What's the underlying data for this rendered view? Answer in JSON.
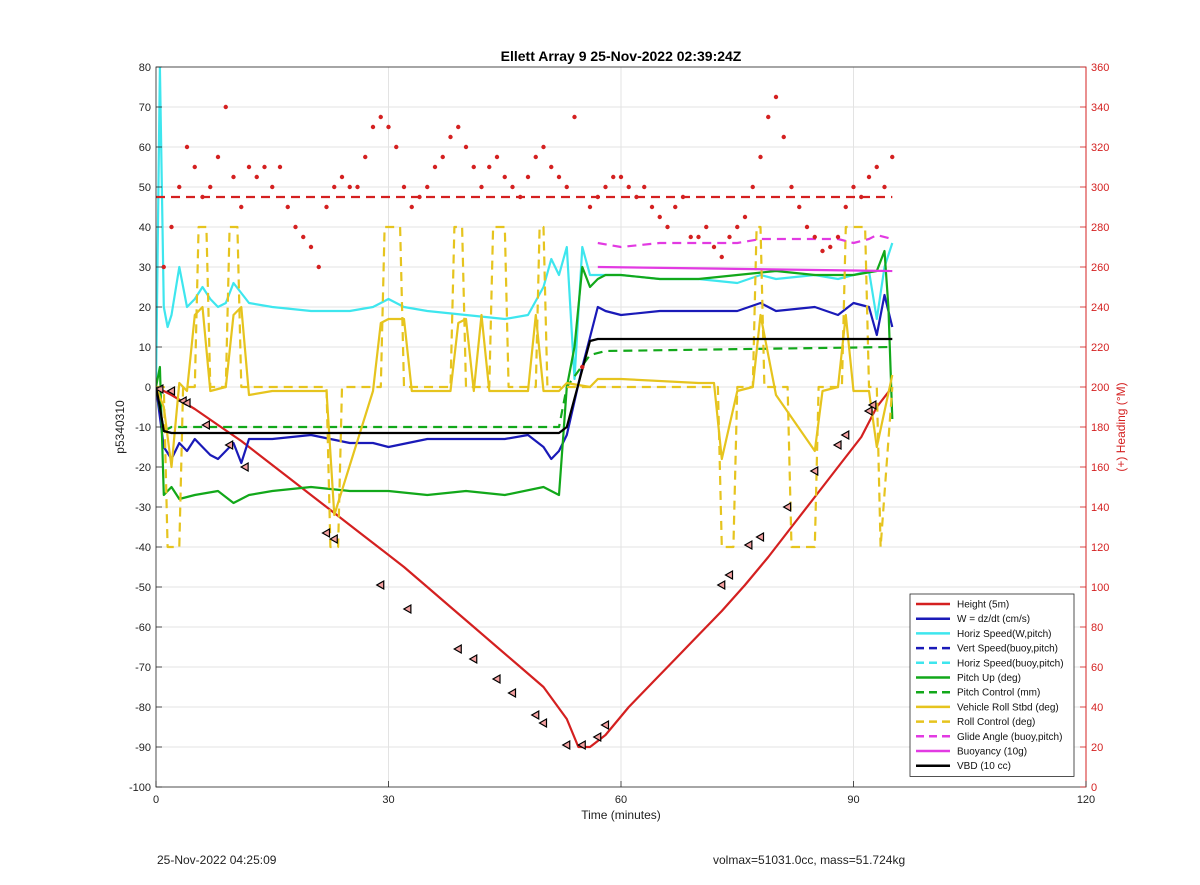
{
  "chart_data": {
    "type": "line",
    "title": "Ellett Array 9 25-Nov-2022 02:39:24Z",
    "xlabel": "Time (minutes)",
    "ylabel": "p5340310",
    "y2label": "(+) Heading (°M)",
    "xlim": [
      0,
      120
    ],
    "ylim": [
      -100,
      80
    ],
    "y2lim": [
      0,
      360
    ],
    "xticks": [
      "0",
      "30",
      "60",
      "90",
      "120"
    ],
    "yticks": [
      "80",
      "70",
      "60",
      "50",
      "40",
      "30",
      "20",
      "10",
      "0",
      "-10",
      "-20",
      "-30",
      "-40",
      "-50",
      "-60",
      "-70",
      "-80",
      "-90",
      "-100"
    ],
    "y2ticks": [
      "360",
      "340",
      "320",
      "300",
      "280",
      "260",
      "240",
      "220",
      "200",
      "180",
      "160",
      "140",
      "120",
      "100",
      "80",
      "60",
      "40",
      "20",
      "0"
    ],
    "grid": true,
    "legend_position": "bottom-right",
    "colors": {
      "red": "#d42020",
      "blue": "#1a1ab8",
      "cyan": "#3ee6ee",
      "green": "#12a81a",
      "yellow": "#e6c41e",
      "magenta": "#e23ae2",
      "black": "#000000",
      "axis_right": "#d42020"
    },
    "series": [
      {
        "name": "Height (5m)",
        "color": "#d42020",
        "style": "solid",
        "x": [
          0,
          2,
          5,
          8,
          11,
          14,
          17,
          20,
          23,
          26,
          29,
          32,
          35,
          38,
          41,
          44,
          47,
          50,
          53,
          54.5,
          56,
          58,
          61,
          64,
          67,
          70,
          73,
          76,
          79,
          82,
          85,
          88,
          91,
          93,
          95
        ],
        "y": [
          0,
          -2,
          -5.5,
          -9.5,
          -13.5,
          -18,
          -22.5,
          -27,
          -31.5,
          -36,
          -40.5,
          -45,
          -50,
          -55,
          -60,
          -65,
          -70,
          -75,
          -83,
          -90,
          -90,
          -87,
          -80,
          -74,
          -68,
          -62,
          -56,
          -49.5,
          -42.5,
          -35,
          -27.5,
          -20,
          -12.5,
          -5,
          0
        ]
      },
      {
        "name": "W = dz/dt (cm/s)",
        "color": "#1a1ab8",
        "style": "solid",
        "x": [
          0,
          1,
          2,
          3,
          4,
          5,
          6,
          7,
          8,
          9,
          10,
          11,
          12,
          15,
          20,
          25,
          28,
          30,
          35,
          40,
          45,
          48,
          50,
          51,
          52,
          53,
          55,
          57,
          58,
          60,
          65,
          70,
          75,
          78,
          80,
          85,
          88,
          90,
          92,
          93,
          94,
          95
        ],
        "y": [
          0,
          -15,
          -18,
          -14,
          -16,
          -13,
          -15,
          -17,
          -18,
          -16,
          -14,
          -19,
          -13,
          -13,
          -12,
          -14,
          -14,
          -15,
          -13,
          -13,
          -13,
          -12,
          -15,
          -18,
          -16,
          -12,
          5,
          20,
          19,
          18,
          19,
          19,
          19,
          21,
          19,
          20,
          18,
          21,
          20,
          13,
          23,
          15
        ]
      },
      {
        "name": "Horiz Speed(W,pitch)",
        "color": "#3ee6ee",
        "style": "solid",
        "x": [
          0,
          0.5,
          1,
          1.5,
          2,
          3,
          4,
          5,
          6,
          7,
          8,
          9,
          10,
          12,
          15,
          20,
          25,
          28,
          30,
          32,
          35,
          40,
          45,
          48,
          50,
          51,
          52,
          53,
          54,
          55,
          56,
          58,
          60,
          65,
          70,
          75,
          78,
          80,
          85,
          88,
          90,
          92,
          93,
          94,
          95
        ],
        "y": [
          0,
          80,
          20,
          15,
          18,
          30,
          20,
          22,
          25,
          22,
          20,
          21,
          26,
          21,
          20,
          19,
          19,
          20,
          22,
          20,
          19,
          18,
          17,
          18,
          25,
          32,
          28,
          35,
          2,
          35,
          28,
          28,
          28,
          27,
          27,
          26,
          28,
          27,
          28,
          27,
          28,
          29,
          17,
          30,
          36
        ]
      },
      {
        "name": "Vert Speed(buoy,pitch)",
        "color": "#1a1ab8",
        "style": "dashed",
        "x": [],
        "y": []
      },
      {
        "name": "Horiz Speed(buoy,pitch)",
        "color": "#3ee6ee",
        "style": "dashed",
        "x": [],
        "y": []
      },
      {
        "name": "Pitch Up (deg)",
        "color": "#12a81a",
        "style": "solid",
        "x": [
          0,
          0.5,
          1,
          2,
          3,
          5,
          8,
          10,
          12,
          15,
          20,
          25,
          30,
          35,
          40,
          45,
          50,
          52,
          53,
          54,
          55,
          56,
          57,
          58,
          60,
          65,
          70,
          75,
          80,
          85,
          90,
          93,
          94,
          94.5,
          95
        ],
        "y": [
          0,
          5,
          -27,
          -25,
          -28,
          -27,
          -26,
          -29,
          -27,
          -26,
          -25,
          -26,
          -26,
          -27,
          -26,
          -27,
          -25,
          -27,
          0,
          10,
          30,
          25,
          27,
          28,
          28,
          27,
          27,
          28,
          29,
          28,
          28,
          29,
          34,
          20,
          -8
        ]
      },
      {
        "name": "Pitch Control (mm)",
        "color": "#12a81a",
        "style": "dashed",
        "x": [
          0,
          1,
          2,
          52,
          53,
          56,
          58,
          95
        ],
        "y": [
          0,
          -11,
          -10,
          -10,
          0,
          8,
          9,
          10
        ]
      },
      {
        "name": "Vehicle Roll Stbd (deg)",
        "color": "#e6c41e",
        "style": "solid",
        "x": [
          0,
          1,
          2,
          3,
          4,
          5,
          6,
          7,
          9,
          10,
          11,
          12,
          15,
          20,
          22,
          23,
          28,
          29,
          30,
          32,
          33,
          35,
          38,
          39,
          40,
          41,
          42,
          43,
          44,
          45,
          48,
          49,
          50,
          52,
          53,
          56,
          57,
          58,
          60,
          70,
          72,
          73,
          75,
          77,
          78,
          80,
          85,
          86,
          88,
          89,
          90,
          92,
          93,
          95
        ],
        "y": [
          0,
          -5,
          -20,
          1,
          -1,
          18,
          20,
          -1,
          0,
          18,
          20,
          -2,
          -1,
          -1,
          -1,
          -32,
          -1,
          16,
          17,
          17,
          -1,
          -1,
          -1,
          16,
          17,
          -1,
          18,
          -1,
          -1,
          -1,
          -1,
          18,
          -1,
          -1,
          1,
          0,
          2,
          2,
          2,
          1,
          1,
          -18,
          -1,
          0,
          18,
          -2,
          -16,
          -1,
          0,
          18,
          -1,
          -1,
          -15,
          3
        ]
      },
      {
        "name": "Roll Control (deg)",
        "color": "#e6c41e",
        "style": "dashed",
        "x": [
          0,
          1,
          1.5,
          3,
          3.5,
          5,
          5.5,
          6.5,
          7,
          9,
          9.5,
          10.5,
          11,
          22,
          22.5,
          23.5,
          24,
          29,
          29.5,
          31.5,
          32,
          38,
          38.5,
          39.5,
          40,
          43,
          43.5,
          45,
          45.5,
          49,
          49.5,
          50,
          50.5,
          56,
          56.5,
          72.5,
          73,
          74.5,
          75,
          77,
          77.5,
          78,
          78.5,
          81.5,
          82,
          85,
          85.5,
          88.5,
          89,
          91.5,
          92,
          93,
          93.5,
          95
        ],
        "y": [
          0,
          0,
          -40,
          -40,
          0,
          0,
          40,
          40,
          0,
          0,
          40,
          40,
          0,
          0,
          -40,
          -40,
          0,
          0,
          40,
          40,
          0,
          0,
          40,
          40,
          0,
          0,
          40,
          40,
          0,
          0,
          40,
          40,
          0,
          0,
          0,
          0,
          -40,
          -40,
          0,
          0,
          40,
          40,
          0,
          0,
          -40,
          -40,
          0,
          0,
          40,
          40,
          0,
          0,
          -40,
          0
        ]
      },
      {
        "name": "Glide Angle (buoy,pitch)",
        "color": "#e23ae2",
        "style": "dashed",
        "x": [
          57,
          60,
          65,
          70,
          75,
          78,
          80,
          85,
          88,
          90,
          92,
          93,
          95
        ],
        "y": [
          36,
          35,
          36,
          36,
          36,
          37,
          37,
          37,
          37,
          36,
          37,
          38,
          37
        ]
      },
      {
        "name": "Buoyancy (10g)",
        "color": "#e23ae2",
        "style": "solid",
        "x": [
          57,
          95
        ],
        "y": [
          30,
          29
        ]
      },
      {
        "name": "VBD (10 cc)",
        "color": "#000000",
        "style": "solid",
        "x": [
          0,
          0.5,
          1,
          2,
          52,
          53,
          56,
          57,
          58,
          95
        ],
        "y": [
          0,
          -5,
          -11,
          -11.5,
          -11.5,
          -10,
          11.5,
          12,
          12,
          12
        ]
      },
      {
        "name": "Heading",
        "axis": "right",
        "color": "#d42020",
        "style": "dots",
        "x": [
          1,
          2,
          3,
          4,
          5,
          6,
          7,
          8,
          9,
          10,
          11,
          12,
          13,
          14,
          15,
          16,
          17,
          18,
          19,
          20,
          21,
          22,
          23,
          24,
          25,
          26,
          27,
          28,
          29,
          30,
          31,
          32,
          33,
          34,
          35,
          36,
          37,
          38,
          39,
          40,
          41,
          42,
          43,
          44,
          45,
          46,
          47,
          48,
          49,
          50,
          51,
          52,
          53,
          54,
          55,
          56,
          57,
          58,
          59,
          60,
          61,
          62,
          63,
          64,
          65,
          66,
          67,
          68,
          69,
          70,
          71,
          72,
          73,
          74,
          75,
          76,
          77,
          78,
          79,
          80,
          81,
          82,
          83,
          84,
          85,
          86,
          87,
          88,
          89,
          90,
          91,
          92,
          93,
          94,
          95
        ],
        "y": [
          260,
          280,
          300,
          320,
          310,
          295,
          300,
          315,
          340,
          305,
          290,
          310,
          305,
          310,
          300,
          310,
          290,
          280,
          275,
          270,
          260,
          290,
          300,
          305,
          300,
          300,
          315,
          330,
          335,
          330,
          320,
          300,
          290,
          295,
          300,
          310,
          315,
          325,
          330,
          320,
          310,
          300,
          310,
          315,
          305,
          300,
          295,
          305,
          315,
          320,
          310,
          305,
          300,
          335,
          210,
          290,
          295,
          300,
          305,
          305,
          300,
          295,
          300,
          290,
          285,
          280,
          290,
          295,
          275,
          275,
          280,
          270,
          265,
          275,
          280,
          285,
          300,
          315,
          335,
          345,
          325,
          300,
          290,
          280,
          275,
          268,
          270,
          275,
          290,
          300,
          295,
          305,
          310,
          300,
          315
        ]
      },
      {
        "name": "Mean heading",
        "axis": "right",
        "color": "#d42020",
        "style": "dashed",
        "x": [
          0,
          95
        ],
        "y": [
          295,
          295
        ]
      }
    ],
    "markers": {
      "symbol": "triangle",
      "color": "#000000",
      "x": [
        0.5,
        2,
        3.5,
        4,
        6.5,
        9.5,
        11.5,
        22,
        23,
        29,
        32.5,
        39,
        41,
        44,
        46,
        49,
        50,
        53,
        55,
        57,
        58,
        73,
        74,
        76.5,
        78,
        81.5,
        85,
        88,
        89,
        92,
        92.5
      ],
      "y": [
        -0.5,
        -1,
        -3.5,
        -4,
        -9.5,
        -14.5,
        -20,
        -36.5,
        -38,
        -49.5,
        -55.5,
        -65.5,
        -68,
        -73,
        -76.5,
        -82,
        -84,
        -89.5,
        -89.5,
        -87.5,
        -84.5,
        -49.5,
        -47,
        -39.5,
        -37.5,
        -30,
        -21,
        -14.5,
        -12,
        -6,
        -4.5
      ]
    }
  },
  "footer": {
    "left": "25-Nov-2022 04:25:09",
    "right": "volmax=51031.0cc, mass=51.724kg"
  }
}
